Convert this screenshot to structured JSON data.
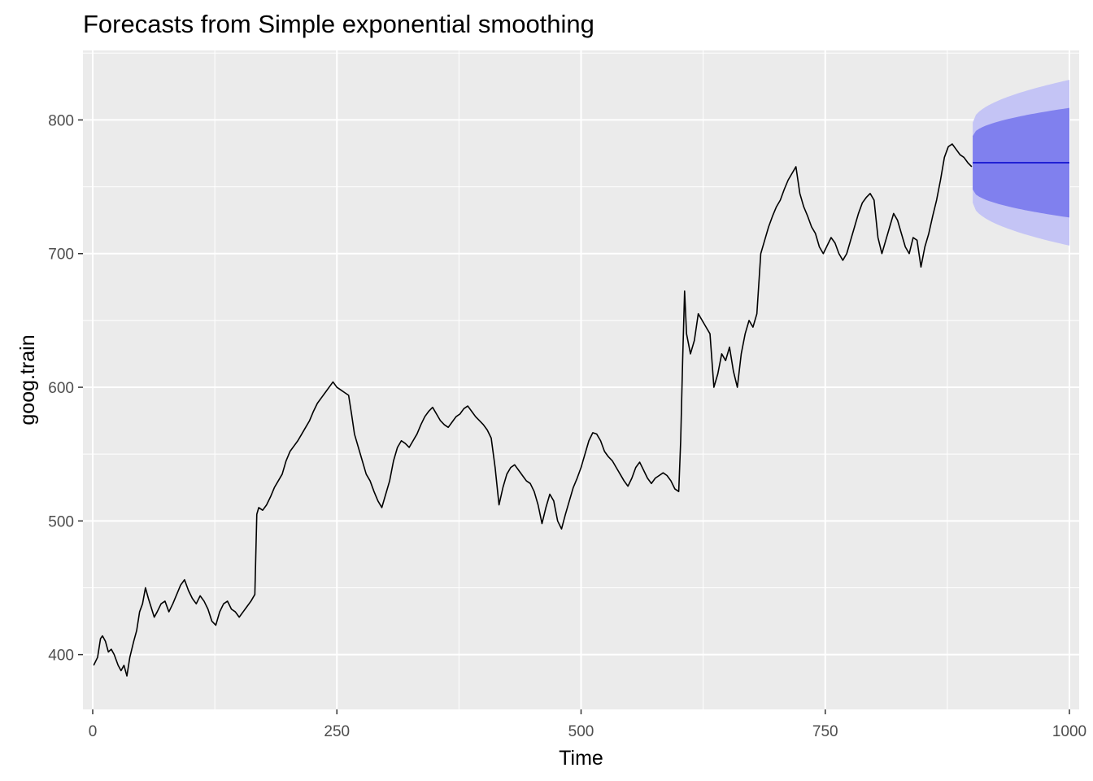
{
  "chart_data": {
    "type": "line",
    "title": "Forecasts from Simple exponential smoothing",
    "xlabel": "Time",
    "ylabel": "goog.train",
    "xlim": [
      -10,
      1010
    ],
    "ylim": [
      359,
      852
    ],
    "x_ticks": [
      0,
      250,
      500,
      750,
      1000
    ],
    "x_tick_labels": [
      "0",
      "250",
      "500",
      "750",
      "1000"
    ],
    "y_ticks": [
      400,
      500,
      600,
      700,
      800
    ],
    "y_tick_labels": [
      "400",
      "500",
      "600",
      "700",
      "800"
    ],
    "grid": true,
    "legend": "none",
    "series": [
      {
        "color": "#000000",
        "x": [
          1,
          5,
          8,
          10,
          13,
          16,
          19,
          22,
          26,
          29,
          32,
          35,
          38,
          40,
          42,
          45,
          48,
          51,
          54,
          57,
          60,
          63,
          66,
          70,
          74,
          78,
          82,
          86,
          90,
          94,
          98,
          102,
          106,
          110,
          114,
          118,
          122,
          126,
          130,
          134,
          138,
          142,
          146,
          150,
          154,
          158,
          162,
          166,
          168,
          170,
          174,
          178,
          182,
          186,
          190,
          194,
          198,
          202,
          206,
          210,
          214,
          218,
          222,
          226,
          230,
          234,
          238,
          242,
          246,
          250,
          254,
          258,
          262,
          265,
          268,
          272,
          276,
          280,
          284,
          288,
          292,
          296,
          300,
          304,
          308,
          312,
          316,
          320,
          324,
          328,
          332,
          336,
          340,
          344,
          348,
          352,
          356,
          360,
          364,
          368,
          372,
          376,
          380,
          384,
          388,
          392,
          396,
          400,
          404,
          408,
          412,
          416,
          420,
          424,
          428,
          432,
          436,
          440,
          444,
          448,
          452,
          456,
          460,
          464,
          468,
          472,
          476,
          480,
          484,
          488,
          492,
          496,
          500,
          504,
          508,
          512,
          516,
          520,
          524,
          528,
          532,
          536,
          540,
          544,
          548,
          552,
          556,
          560,
          564,
          568,
          572,
          576,
          580,
          584,
          588,
          592,
          596,
          600,
          602,
          604,
          606,
          608,
          612,
          616,
          620,
          624,
          628,
          632,
          636,
          640,
          644,
          648,
          652,
          656,
          660,
          664,
          668,
          672,
          676,
          680,
          684,
          688,
          692,
          696,
          700,
          704,
          708,
          712,
          716,
          720,
          724,
          728,
          732,
          736,
          740,
          744,
          748,
          752,
          756,
          760,
          764,
          768,
          772,
          776,
          780,
          784,
          788,
          792,
          796,
          800,
          804,
          808,
          812,
          816,
          820,
          824,
          828,
          832,
          836,
          840,
          844,
          848,
          852,
          856,
          860,
          864,
          868,
          872,
          876,
          880,
          884,
          888,
          892,
          896,
          900
        ],
        "values": [
          392,
          398,
          412,
          414,
          410,
          402,
          404,
          400,
          392,
          388,
          392,
          384,
          398,
          404,
          410,
          418,
          432,
          438,
          450,
          442,
          435,
          428,
          432,
          438,
          440,
          432,
          438,
          445,
          452,
          456,
          448,
          442,
          438,
          444,
          440,
          434,
          425,
          422,
          432,
          438,
          440,
          434,
          432,
          428,
          432,
          436,
          440,
          445,
          505,
          510,
          508,
          512,
          518,
          525,
          530,
          535,
          545,
          552,
          556,
          560,
          565,
          570,
          575,
          582,
          588,
          592,
          596,
          600,
          604,
          600,
          598,
          596,
          594,
          580,
          565,
          555,
          545,
          535,
          530,
          522,
          515,
          510,
          520,
          530,
          545,
          555,
          560,
          558,
          555,
          560,
          565,
          572,
          578,
          582,
          585,
          580,
          575,
          572,
          570,
          574,
          578,
          580,
          584,
          586,
          582,
          578,
          575,
          572,
          568,
          562,
          540,
          512,
          525,
          535,
          540,
          542,
          538,
          534,
          530,
          528,
          522,
          512,
          498,
          510,
          520,
          515,
          500,
          494,
          505,
          515,
          525,
          532,
          540,
          550,
          560,
          566,
          565,
          560,
          552,
          548,
          545,
          540,
          535,
          530,
          526,
          532,
          540,
          544,
          538,
          532,
          528,
          532,
          534,
          536,
          534,
          530,
          524,
          522,
          560,
          620,
          672,
          640,
          625,
          635,
          655,
          650,
          645,
          640,
          600,
          610,
          625,
          620,
          630,
          612,
          600,
          625,
          640,
          650,
          645,
          655,
          700,
          710,
          720,
          728,
          735,
          740,
          748,
          755,
          760,
          765,
          745,
          735,
          728,
          720,
          715,
          705,
          700,
          706,
          712,
          708,
          700,
          695,
          700,
          710,
          720,
          730,
          738,
          742,
          745,
          740,
          712,
          700,
          710,
          720,
          730,
          725,
          715,
          705,
          700,
          712,
          710,
          690,
          705,
          715,
          728,
          740,
          755,
          772,
          780,
          782,
          778,
          774,
          772,
          768,
          765
        ]
      }
    ],
    "forecast": {
      "x": [
        901,
        1000
      ],
      "mean": [
        768,
        768
      ],
      "lo80": [
        748,
        727
      ],
      "hi80": [
        788,
        809
      ],
      "lo95": [
        738,
        706
      ],
      "hi95": [
        798,
        830
      ],
      "mean_color": "#0000cc",
      "band80_color": "#8080ee",
      "band95_color": "#c4c4f5"
    },
    "panel_color": "#ebebeb",
    "grid_color": "#ffffff"
  }
}
